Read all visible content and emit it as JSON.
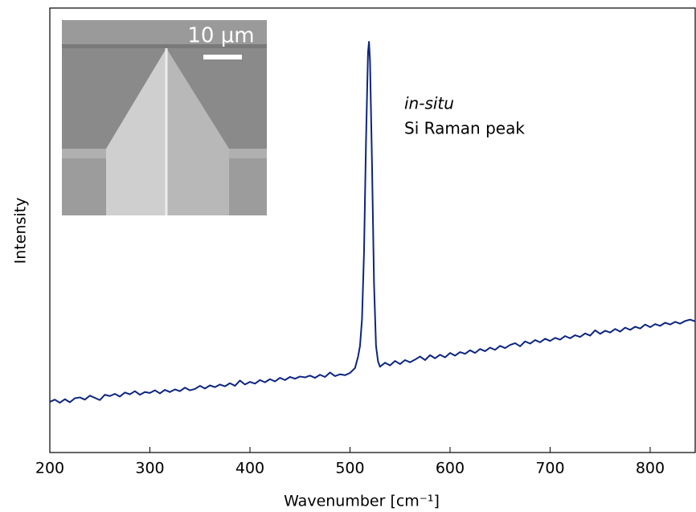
{
  "chart_data": {
    "type": "line",
    "x_label": "Wavenumber [cm⁻¹]",
    "y_label": "Intensity",
    "annotations": [
      "in-situ",
      "Si Raman peak"
    ],
    "inset_scale_label": "10 μm",
    "xlim": [
      200,
      845
    ],
    "ylim": [
      0,
      100
    ],
    "xticks": [
      200,
      300,
      400,
      500,
      600,
      700,
      800
    ],
    "grid": false,
    "x": [
      200,
      205,
      210,
      215,
      220,
      225,
      230,
      235,
      240,
      245,
      250,
      255,
      260,
      265,
      270,
      275,
      280,
      285,
      290,
      295,
      300,
      305,
      310,
      315,
      320,
      325,
      330,
      335,
      340,
      345,
      350,
      355,
      360,
      365,
      370,
      375,
      380,
      385,
      390,
      395,
      400,
      405,
      410,
      415,
      420,
      425,
      430,
      435,
      440,
      445,
      450,
      455,
      460,
      465,
      470,
      475,
      480,
      485,
      490,
      495,
      500,
      505,
      508,
      510,
      512,
      514,
      516,
      518,
      519,
      520,
      522,
      524,
      526,
      528,
      530,
      535,
      540,
      545,
      550,
      555,
      560,
      565,
      570,
      575,
      580,
      585,
      590,
      595,
      600,
      605,
      610,
      615,
      620,
      625,
      630,
      635,
      640,
      645,
      650,
      655,
      660,
      665,
      670,
      675,
      680,
      685,
      690,
      695,
      700,
      705,
      710,
      715,
      720,
      725,
      730,
      735,
      740,
      745,
      750,
      755,
      760,
      765,
      770,
      775,
      780,
      785,
      790,
      795,
      800,
      805,
      810,
      815,
      820,
      825,
      830,
      835,
      840,
      845
    ],
    "series": [
      {
        "color": "#0d2580",
        "values": [
          11.4,
          11.9,
          11.2,
          12.0,
          11.3,
          12.2,
          12.4,
          11.9,
          12.8,
          12.3,
          11.8,
          13.0,
          12.7,
          13.2,
          12.6,
          13.5,
          13.1,
          13.8,
          13.0,
          13.6,
          13.4,
          14.0,
          13.3,
          14.1,
          13.6,
          14.2,
          13.8,
          14.6,
          14.0,
          14.3,
          15.0,
          14.4,
          15.1,
          14.7,
          15.3,
          14.9,
          15.6,
          15.0,
          16.2,
          15.3,
          15.9,
          15.5,
          16.3,
          15.8,
          16.5,
          16.0,
          16.8,
          16.3,
          17.0,
          16.6,
          17.1,
          16.9,
          17.3,
          16.8,
          17.5,
          17.0,
          18.0,
          17.2,
          17.6,
          17.4,
          17.9,
          19.0,
          21.5,
          24.0,
          30.0,
          45.0,
          70.0,
          90.0,
          92.4,
          88.0,
          65.0,
          38.0,
          24.0,
          20.5,
          19.3,
          20.2,
          19.6,
          20.6,
          19.9,
          20.8,
          20.3,
          20.9,
          21.6,
          20.8,
          21.9,
          21.2,
          22.0,
          21.4,
          22.4,
          21.8,
          22.6,
          22.2,
          23.0,
          22.4,
          23.3,
          22.8,
          23.6,
          23.1,
          24.0,
          23.5,
          24.2,
          24.6,
          23.9,
          25.0,
          24.5,
          25.3,
          24.8,
          25.6,
          25.1,
          25.8,
          25.4,
          26.2,
          25.7,
          26.4,
          26.0,
          26.8,
          26.3,
          27.5,
          26.7,
          27.4,
          27.0,
          27.8,
          27.2,
          28.1,
          27.6,
          28.3,
          27.9,
          28.8,
          28.2,
          28.9,
          28.5,
          29.2,
          28.8,
          29.4,
          29.0,
          29.6,
          29.9,
          29.5
        ]
      }
    ]
  }
}
